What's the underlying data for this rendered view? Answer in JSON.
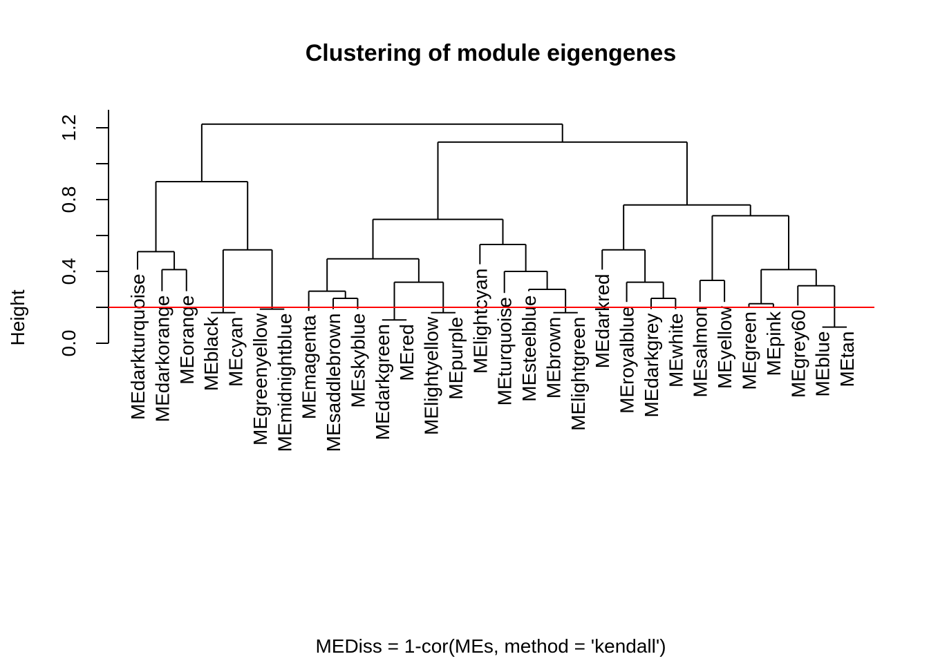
{
  "chart_data": {
    "type": "dendrogram",
    "title": "Clustering of module eigengenes",
    "xlabel": "MEDiss = 1-cor(MEs, method = 'kendall')",
    "ylabel": "Height",
    "ylim": [
      0,
      1.25
    ],
    "y_ticks": [
      0.0,
      0.4,
      0.8,
      1.2
    ],
    "y_tick_labels": [
      "0.0",
      "0.4",
      "0.8",
      "1.2"
    ],
    "cut_height": 0.2,
    "cut_line_color": "#ff0000",
    "line_color": "#000000",
    "leaves": [
      "MEdarkturquoise",
      "MEdarkorange",
      "MEorange",
      "MEblack",
      "MEcyan",
      "MEgreenyellow",
      "MEmidnightblue",
      "MEmagenta",
      "MEsaddlebrown",
      "MEskyblue",
      "MEdarkgreen",
      "MEred",
      "MElightyellow",
      "MEpurple",
      "MElightcyan",
      "MEturquoise",
      "MEsteelblue",
      "MEbrown",
      "MElightgreen",
      "MEdarkred",
      "MEroyalblue",
      "MEdarkgrey",
      "MEwhite",
      "MEsalmon",
      "MEyellow",
      "MEgreen",
      "MEpink",
      "MEgrey60",
      "MEblue",
      "MEtan"
    ],
    "leaf_heights": [
      0.41,
      0.29,
      0.29,
      0.17,
      0.17,
      0.19,
      0.19,
      0.18,
      0.19,
      0.19,
      0.13,
      0.13,
      0.17,
      0.17,
      0.44,
      0.28,
      0.29,
      0.17,
      0.17,
      0.41,
      0.23,
      0.19,
      0.19,
      0.23,
      0.23,
      0.2,
      0.2,
      0.21,
      0.09,
      0.09
    ],
    "merges": [
      {
        "left": "L28",
        "right": "L29",
        "height": 0.09
      },
      {
        "left": "L10",
        "right": "L11",
        "height": 0.13
      },
      {
        "left": "L3",
        "right": "L4",
        "height": 0.17
      },
      {
        "left": "L12",
        "right": "L13",
        "height": 0.17
      },
      {
        "left": "L17",
        "right": "L18",
        "height": 0.17
      },
      {
        "left": "L5",
        "right": "L6",
        "height": 0.19
      },
      {
        "left": "L25",
        "right": "L26",
        "height": 0.22
      },
      {
        "left": "L8",
        "right": "L9",
        "height": 0.25
      },
      {
        "left": "L21",
        "right": "L22",
        "height": 0.25
      },
      {
        "left": "L7",
        "right": "N7",
        "height": 0.29
      },
      {
        "left": "L16",
        "right": "N4",
        "height": 0.3
      },
      {
        "left": "L27",
        "right": "N0",
        "height": 0.32
      },
      {
        "left": "N1",
        "right": "N3",
        "height": 0.34
      },
      {
        "left": "L20",
        "right": "N8",
        "height": 0.34
      },
      {
        "left": "L23",
        "right": "L24",
        "height": 0.35
      },
      {
        "left": "L15",
        "right": "N10",
        "height": 0.4
      },
      {
        "left": "N6",
        "right": "N11",
        "height": 0.41
      },
      {
        "left": "L1",
        "right": "L2",
        "height": 0.41
      },
      {
        "left": "N9",
        "right": "N12",
        "height": 0.47
      },
      {
        "left": "L0",
        "right": "N17",
        "height": 0.51
      },
      {
        "left": "N2",
        "right": "N5",
        "height": 0.52
      },
      {
        "left": "L19",
        "right": "N13",
        "height": 0.52
      },
      {
        "left": "L14",
        "right": "N15",
        "height": 0.55
      },
      {
        "left": "N18",
        "right": "N22",
        "height": 0.69
      },
      {
        "left": "N14",
        "right": "N16",
        "height": 0.71
      },
      {
        "left": "N21",
        "right": "N24",
        "height": 0.77
      },
      {
        "left": "N19",
        "right": "N20",
        "height": 0.9
      },
      {
        "left": "N23",
        "right": "N25",
        "height": 1.12
      },
      {
        "left": "N26",
        "right": "N27",
        "height": 1.22
      }
    ]
  }
}
